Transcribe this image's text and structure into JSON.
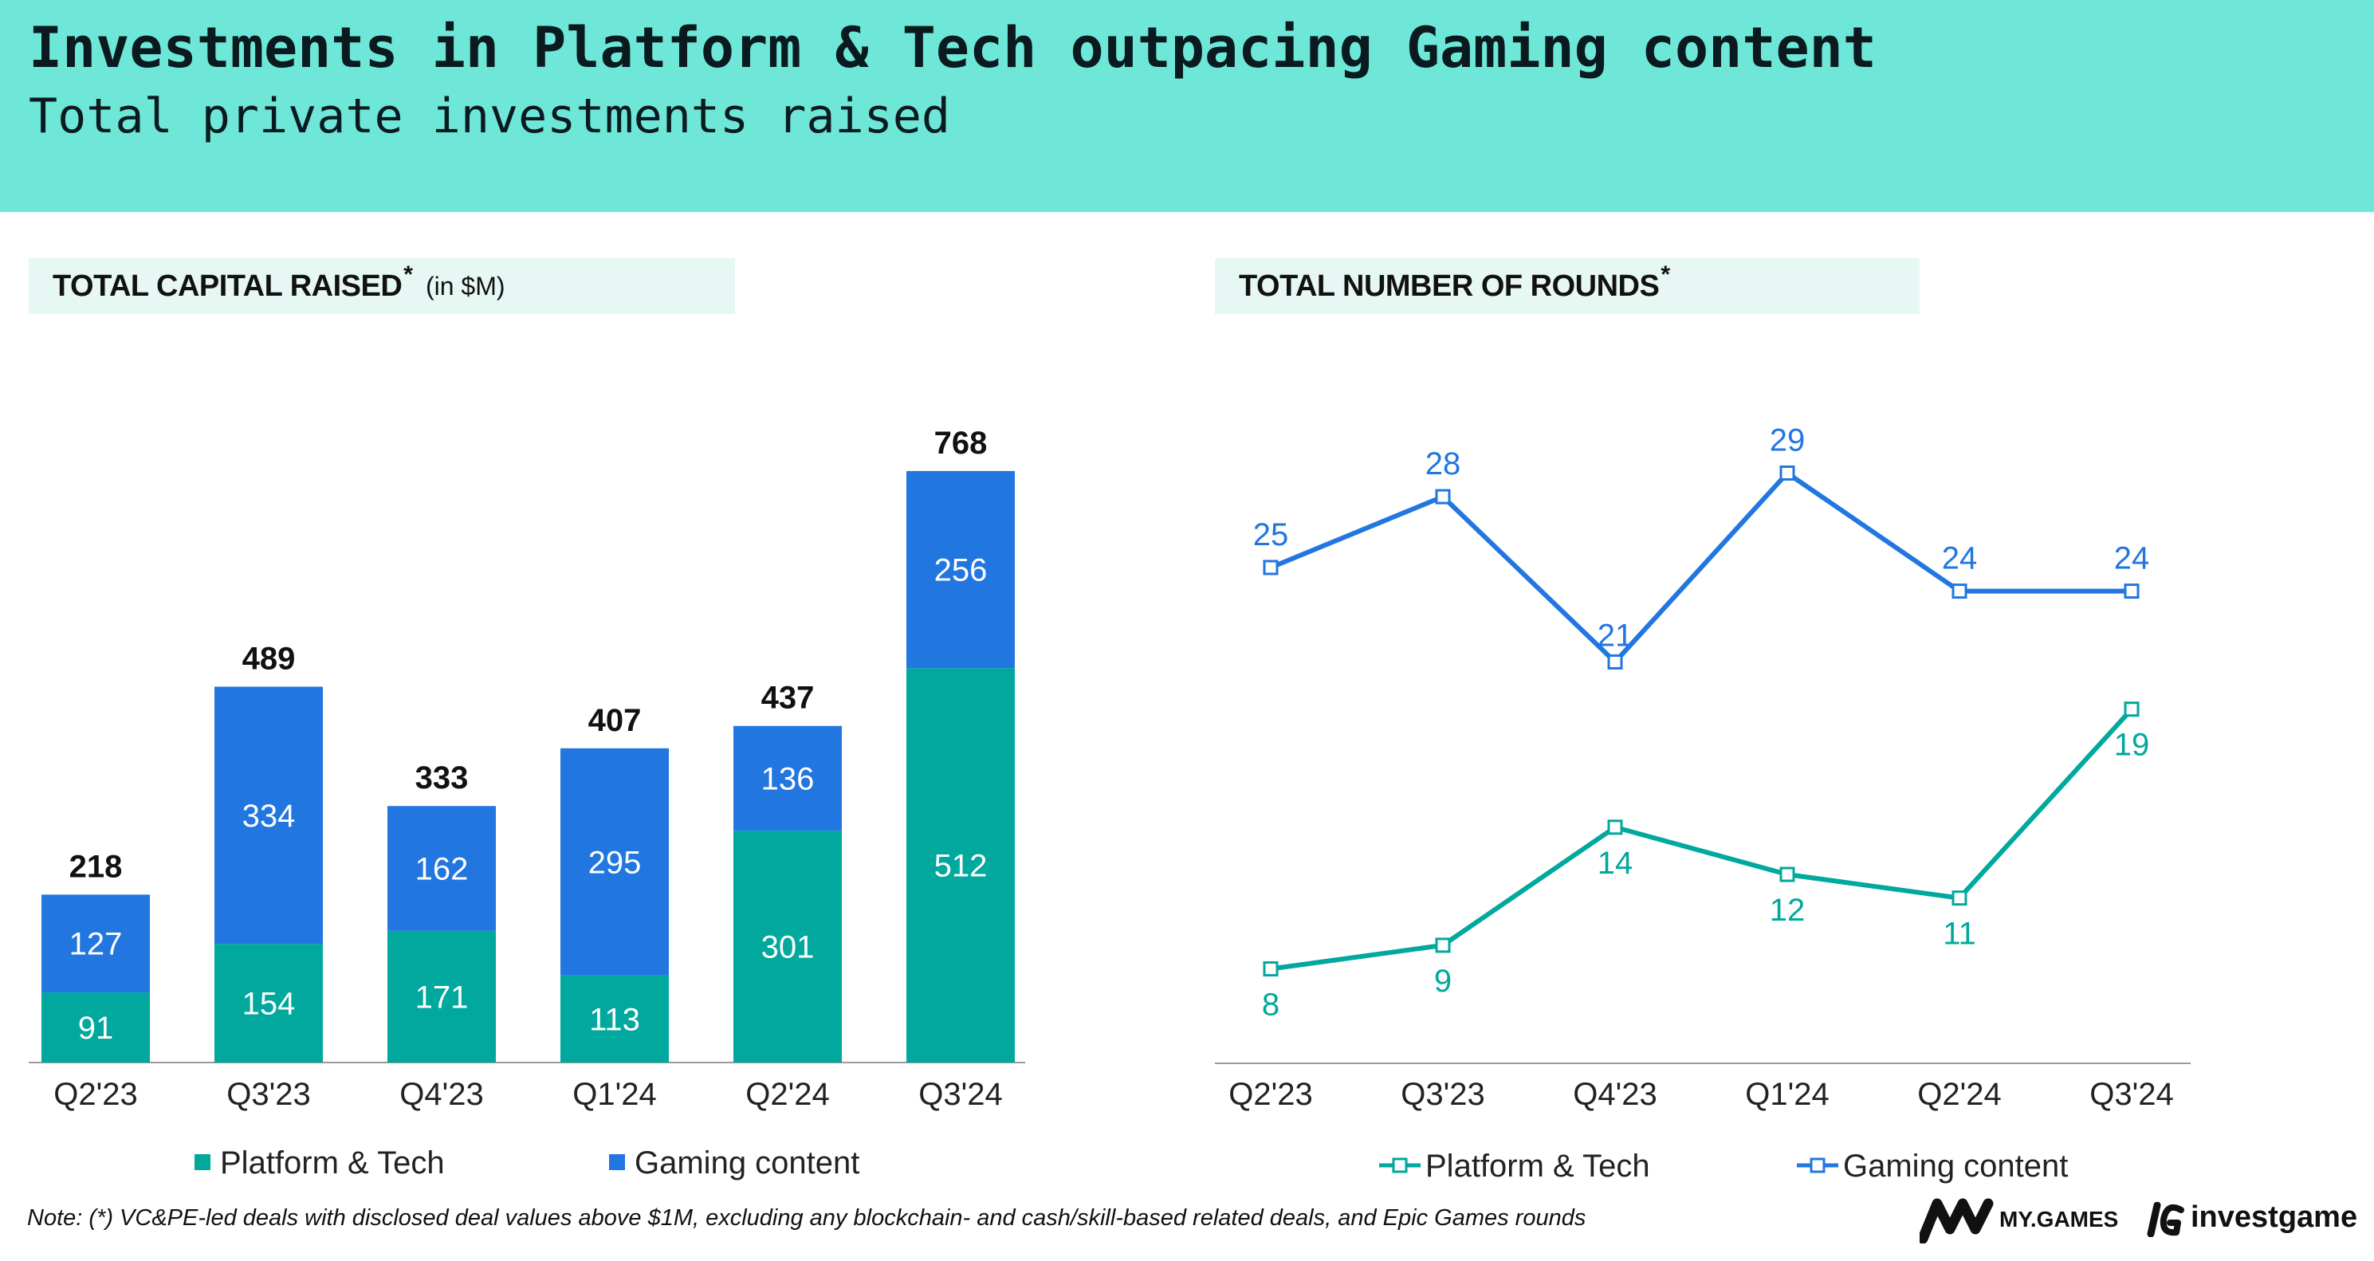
{
  "header": {
    "title": "Investments in Platform & Tech outpacing Gaming content",
    "subtitle": "Total private investments raised"
  },
  "panels": {
    "capital": {
      "label": "TOTAL CAPITAL RAISED",
      "star": "*",
      "unit": "(in $M)"
    },
    "rounds": {
      "label": "TOTAL NUMBER OF ROUNDS",
      "star": "*"
    }
  },
  "colors": {
    "header_bg": "#6ee7d8",
    "platform": "#00a89d",
    "gaming": "#2176e0",
    "label_bg": "#e6f7f4"
  },
  "chart_data": [
    {
      "type": "bar",
      "stacked": true,
      "title": "TOTAL CAPITAL RAISED* (in $M)",
      "categories": [
        "Q2'23",
        "Q3'23",
        "Q4'23",
        "Q1'24",
        "Q2'24",
        "Q3'24"
      ],
      "series": [
        {
          "name": "Platform & Tech",
          "values": [
            91,
            154,
            171,
            113,
            301,
            512
          ]
        },
        {
          "name": "Gaming content",
          "values": [
            127,
            334,
            162,
            295,
            136,
            256
          ]
        }
      ],
      "totals": [
        218,
        489,
        333,
        407,
        437,
        768
      ],
      "ylim": [
        0,
        800
      ],
      "grid": false,
      "legend": "bottom"
    },
    {
      "type": "line",
      "title": "TOTAL NUMBER OF ROUNDS*",
      "categories": [
        "Q2'23",
        "Q3'23",
        "Q4'23",
        "Q1'24",
        "Q2'24",
        "Q3'24"
      ],
      "series": [
        {
          "name": "Platform & Tech",
          "values": [
            8,
            9,
            14,
            12,
            11,
            19
          ]
        },
        {
          "name": "Gaming content",
          "values": [
            25,
            28,
            21,
            29,
            24,
            24
          ]
        }
      ],
      "ylim": [
        4,
        33
      ],
      "grid": false,
      "legend": "bottom"
    }
  ],
  "footer": {
    "note": "Note: (*) VC&PE-led deals with disclosed deal values above $1M, excluding any blockchain- and cash/skill-based related deals, and Epic Games rounds",
    "logos": [
      {
        "text": "MY.GAMES",
        "icon": "mygames-logo"
      },
      {
        "text": "investgame",
        "icon": "investgame-logo"
      }
    ]
  }
}
